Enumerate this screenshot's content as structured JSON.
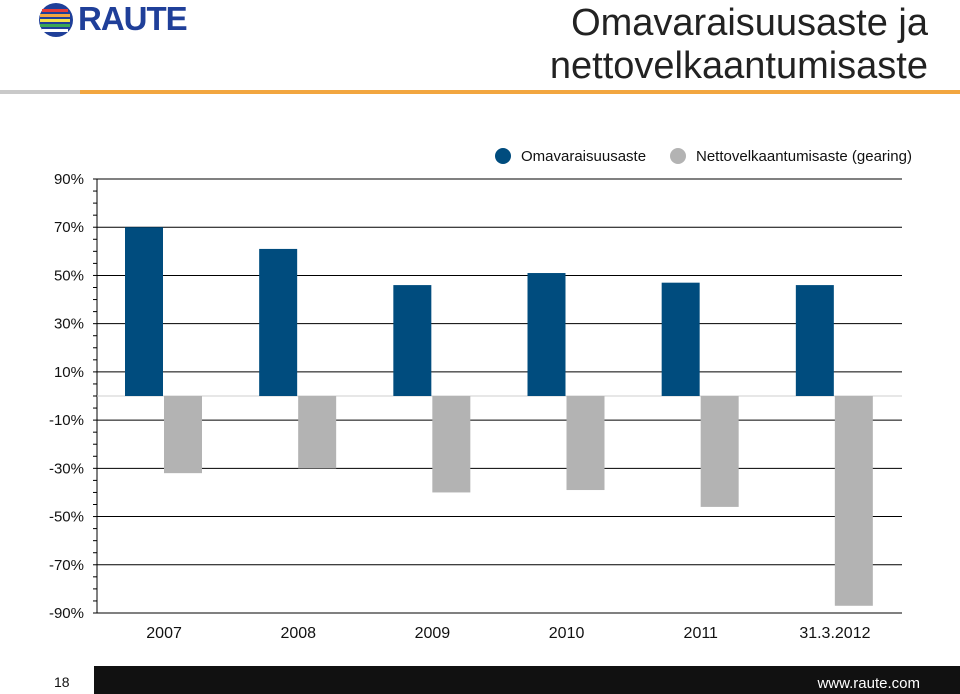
{
  "header": {
    "logo_text": "RAUTE",
    "title_line1": "Omavaraisuusaste ja",
    "title_line2": "nettovelkaantumisaste"
  },
  "footer": {
    "page_number": "18",
    "url": "www.raute.com"
  },
  "colors": {
    "series_equity": "#004c7e",
    "series_gearing": "#b3b3b3",
    "accent_rule": "#f2a640",
    "logo_blue": "#1f3f99"
  },
  "chart_data": {
    "type": "bar",
    "categories": [
      "2007",
      "2008",
      "2009",
      "2010",
      "2011",
      "31.3.2012"
    ],
    "series": [
      {
        "name": "Omavaraisuusaste",
        "values": [
          70,
          61,
          46,
          51,
          47,
          46
        ]
      },
      {
        "name": "Nettovelkaantumisaste (gearing)",
        "values": [
          -32,
          -30,
          -40,
          -39,
          -46,
          -87
        ]
      }
    ],
    "yticks": [
      "90%",
      "70%",
      "50%",
      "30%",
      "10%",
      "-10%",
      "-30%",
      "-50%",
      "-70%",
      "-90%"
    ],
    "ylim": [
      -90,
      90
    ],
    "grid": true,
    "legend": "top"
  }
}
